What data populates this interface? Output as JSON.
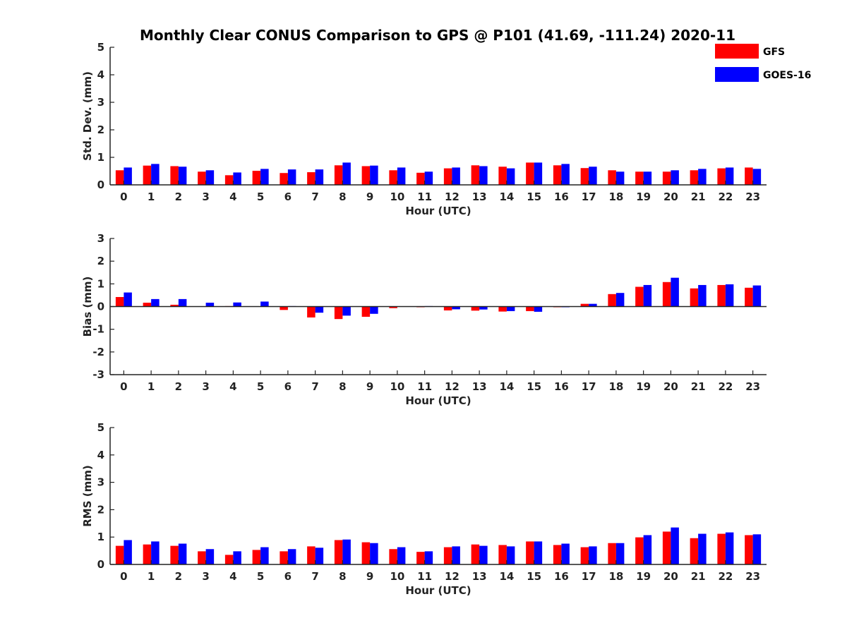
{
  "chart_data": {
    "type": "bar",
    "title": "Monthly Clear CONUS Comparison to GPS @ P101 (41.69, -111.24) 2020-11",
    "legend": {
      "placement": "top-right",
      "entries": [
        {
          "name": "GFS",
          "color": "#ff0000"
        },
        {
          "name": "GOES-16",
          "color": "#0000ff"
        }
      ]
    },
    "categories": [
      "0",
      "1",
      "2",
      "3",
      "4",
      "5",
      "6",
      "7",
      "8",
      "9",
      "10",
      "11",
      "12",
      "13",
      "14",
      "15",
      "16",
      "17",
      "18",
      "19",
      "20",
      "21",
      "22",
      "23"
    ],
    "panels": [
      {
        "id": "std",
        "ylabel": "Std. Dev. (mm)",
        "xlabel": "Hour (UTC)",
        "ylim": [
          0,
          5
        ],
        "yticks": [
          0,
          1,
          2,
          3,
          4,
          5
        ],
        "series": [
          {
            "name": "GFS",
            "color": "#ff0000",
            "values": [
              0.53,
              0.7,
              0.68,
              0.48,
              0.35,
              0.51,
              0.43,
              0.46,
              0.71,
              0.68,
              0.53,
              0.44,
              0.6,
              0.71,
              0.66,
              0.81,
              0.71,
              0.61,
              0.53,
              0.48,
              0.48,
              0.53,
              0.6,
              0.63
            ]
          },
          {
            "name": "GOES-16",
            "color": "#0000ff",
            "values": [
              0.63,
              0.76,
              0.66,
              0.53,
              0.45,
              0.58,
              0.56,
              0.56,
              0.81,
              0.7,
              0.63,
              0.48,
              0.63,
              0.68,
              0.6,
              0.81,
              0.76,
              0.66,
              0.48,
              0.48,
              0.53,
              0.58,
              0.63,
              0.58
            ]
          }
        ]
      },
      {
        "id": "bias",
        "ylabel": "Bias (mm)",
        "xlabel": "Hour (UTC)",
        "ylim": [
          -3,
          3
        ],
        "yticks": [
          -3,
          -2,
          -1,
          0,
          1,
          2,
          3
        ],
        "series": [
          {
            "name": "GFS",
            "color": "#ff0000",
            "values": [
              0.42,
              0.17,
              0.08,
              0.0,
              0.02,
              0.0,
              -0.15,
              -0.48,
              -0.55,
              -0.45,
              -0.07,
              -0.03,
              -0.17,
              -0.18,
              -0.22,
              -0.2,
              -0.03,
              0.12,
              0.55,
              0.87,
              1.08,
              0.8,
              0.95,
              0.83
            ]
          },
          {
            "name": "GOES-16",
            "color": "#0000ff",
            "values": [
              0.62,
              0.33,
              0.33,
              0.17,
              0.18,
              0.22,
              0.02,
              -0.27,
              -0.4,
              -0.32,
              0.0,
              0.02,
              -0.12,
              -0.13,
              -0.2,
              -0.23,
              -0.03,
              0.12,
              0.6,
              0.95,
              1.27,
              0.95,
              0.98,
              0.93
            ]
          }
        ]
      },
      {
        "id": "rms",
        "ylabel": "RMS (mm)",
        "xlabel": "Hour (UTC)",
        "ylim": [
          0,
          5
        ],
        "yticks": [
          0,
          1,
          2,
          3,
          4,
          5
        ],
        "series": [
          {
            "name": "GFS",
            "color": "#ff0000",
            "values": [
              0.68,
              0.73,
              0.68,
              0.48,
              0.35,
              0.53,
              0.48,
              0.66,
              0.89,
              0.81,
              0.56,
              0.46,
              0.63,
              0.73,
              0.71,
              0.84,
              0.71,
              0.63,
              0.78,
              0.99,
              1.2,
              0.96,
              1.12,
              1.07
            ]
          },
          {
            "name": "GOES-16",
            "color": "#0000ff",
            "values": [
              0.89,
              0.84,
              0.76,
              0.56,
              0.48,
              0.63,
              0.56,
              0.61,
              0.91,
              0.78,
              0.63,
              0.48,
              0.66,
              0.68,
              0.66,
              0.84,
              0.76,
              0.66,
              0.78,
              1.07,
              1.35,
              1.12,
              1.17,
              1.1
            ]
          }
        ]
      }
    ]
  }
}
